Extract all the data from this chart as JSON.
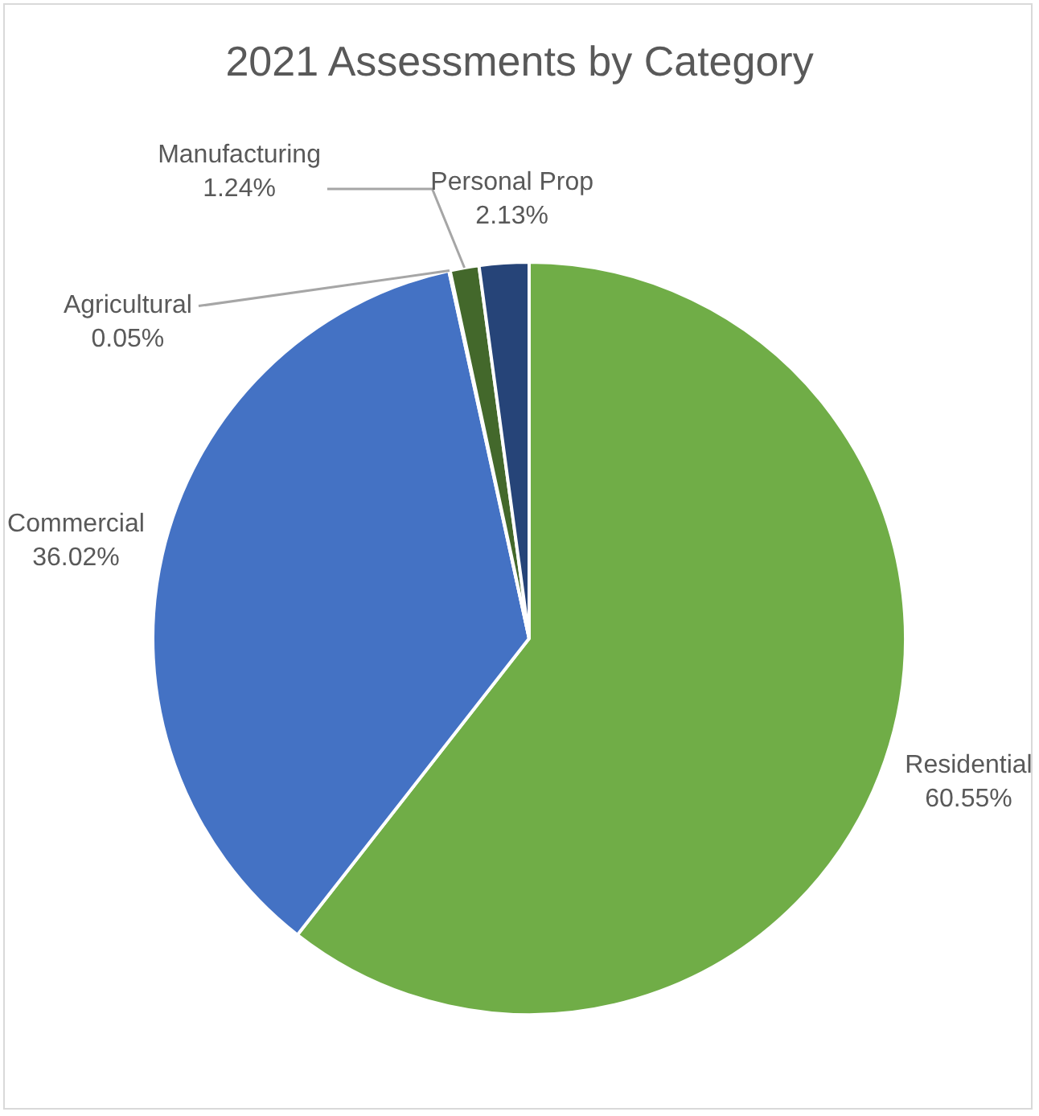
{
  "chart_data": {
    "type": "pie",
    "title": "2021 Assessments by Category",
    "categories": [
      "Residential",
      "Commercial",
      "Agricultural",
      "Manufacturing",
      "Personal Prop"
    ],
    "values": [
      60.55,
      36.02,
      0.05,
      1.24,
      2.13
    ],
    "colors": [
      "#70ad47",
      "#4472c4",
      "#a5a5a5",
      "#43682b",
      "#264478"
    ],
    "value_labels": [
      "60.55%",
      "36.02%",
      "0.05%",
      "1.24%",
      "2.13%"
    ],
    "legend": false
  }
}
